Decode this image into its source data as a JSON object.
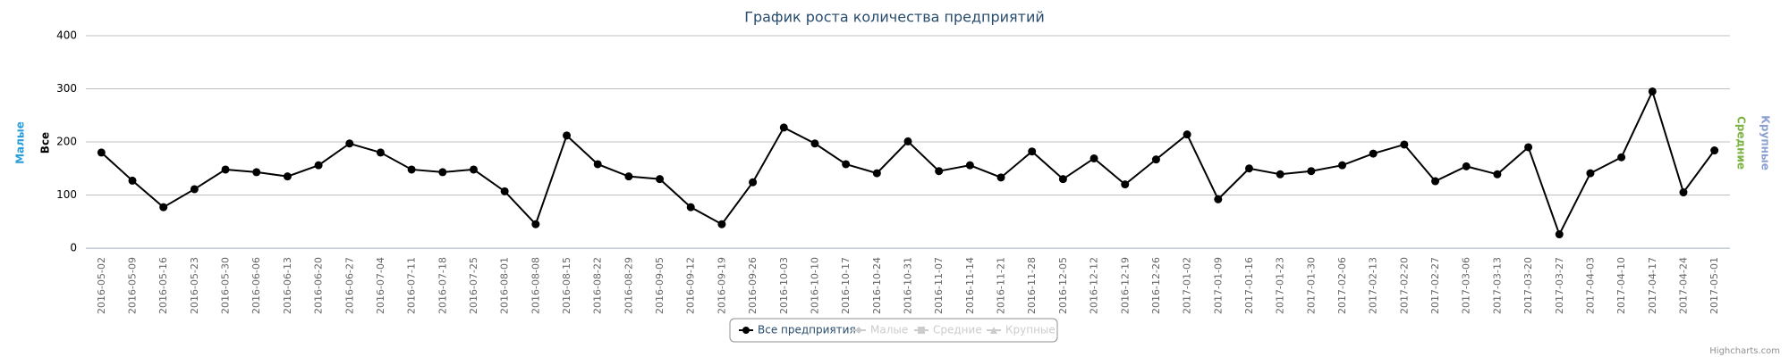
{
  "chart_data": {
    "type": "line",
    "title": "График роста количества предприятий",
    "categories": [
      "2016-05-02",
      "2016-05-09",
      "2016-05-16",
      "2016-05-23",
      "2016-05-30",
      "2016-06-06",
      "2016-06-13",
      "2016-06-20",
      "2016-06-27",
      "2016-07-04",
      "2016-07-11",
      "2016-07-18",
      "2016-07-25",
      "2016-08-01",
      "2016-08-08",
      "2016-08-15",
      "2016-08-22",
      "2016-08-29",
      "2016-09-05",
      "2016-09-12",
      "2016-09-19",
      "2016-09-26",
      "2016-10-03",
      "2016-10-10",
      "2016-10-17",
      "2016-10-24",
      "2016-10-31",
      "2016-11-07",
      "2016-11-14",
      "2016-11-21",
      "2016-11-28",
      "2016-12-05",
      "2016-12-12",
      "2016-12-19",
      "2016-12-26",
      "2017-01-02",
      "2017-01-09",
      "2017-01-16",
      "2017-01-23",
      "2017-01-30",
      "2017-02-06",
      "2017-02-13",
      "2017-02-20",
      "2017-02-27",
      "2017-03-06",
      "2017-03-13",
      "2017-03-20",
      "2017-03-27",
      "2017-04-03",
      "2017-04-10",
      "2017-04-17",
      "2017-04-24",
      "2017-05-01"
    ],
    "series": [
      {
        "name": "Все предприятия",
        "color": "#000000",
        "marker": "circle",
        "visible": true,
        "values": [
          180,
          127,
          77,
          111,
          148,
          143,
          135,
          156,
          197,
          180,
          148,
          143,
          148,
          107,
          45,
          212,
          158,
          135,
          130,
          77,
          45,
          124,
          227,
          197,
          158,
          141,
          201,
          145,
          156,
          133,
          182,
          130,
          169,
          120,
          167,
          214,
          92,
          150,
          139,
          145,
          156,
          178,
          195,
          126,
          154,
          139,
          190,
          26,
          141,
          171,
          295,
          105,
          184
        ]
      },
      {
        "name": "Малые",
        "color": "#2b9fd9",
        "marker": "diamond",
        "visible": false
      },
      {
        "name": "Средние",
        "color": "#7cb342",
        "marker": "square",
        "visible": false
      },
      {
        "name": "Крупные",
        "color": "#8c9fd0",
        "marker": "triangle",
        "visible": false
      }
    ],
    "axis_titles": [
      {
        "title": "Малые",
        "color": "#2b9fd9",
        "side": "left"
      },
      {
        "title": "Все",
        "color": "#000000",
        "side": "left"
      },
      {
        "title": "Средние",
        "color": "#7cb342",
        "side": "right"
      },
      {
        "title": "Крупные",
        "color": "#8c9fd0",
        "side": "right"
      }
    ],
    "ylim": [
      0,
      400
    ],
    "yticks": [
      0,
      100,
      200,
      300,
      400
    ],
    "grid": true,
    "legend": "bottom",
    "credits": "Highcharts.com"
  }
}
